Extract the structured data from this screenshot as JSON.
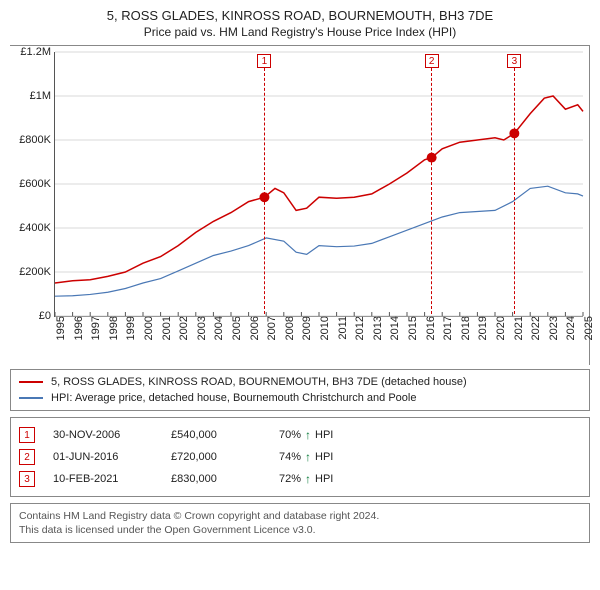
{
  "title": {
    "line1": "5, ROSS GLADES, KINROSS ROAD, BOURNEMOUTH, BH3 7DE",
    "line2": "Price paid vs. HM Land Registry's House Price Index (HPI)"
  },
  "chart": {
    "type": "line",
    "background_color": "#ffffff",
    "grid_color": "#d9d9d9",
    "axis_color": "#555555",
    "x": {
      "min": 1995,
      "max": 2025,
      "ticks": [
        1995,
        1996,
        1997,
        1998,
        1999,
        2000,
        2001,
        2002,
        2003,
        2004,
        2005,
        2006,
        2007,
        2008,
        2009,
        2010,
        2011,
        2012,
        2013,
        2014,
        2015,
        2016,
        2017,
        2018,
        2019,
        2020,
        2021,
        2022,
        2023,
        2024,
        2025
      ]
    },
    "y": {
      "min": 0,
      "max": 1200000,
      "ticks": [
        0,
        200000,
        400000,
        600000,
        800000,
        1000000,
        1200000
      ],
      "tick_labels": [
        "£0",
        "£200K",
        "£400K",
        "£600K",
        "£800K",
        "£1M",
        "£1.2M"
      ]
    },
    "series": [
      {
        "name": "price_paid",
        "label": "5, ROSS GLADES, KINROSS ROAD, BOURNEMOUTH, BH3 7DE (detached house)",
        "color": "#cc0000",
        "width": 1.5,
        "points": [
          [
            1995,
            150000
          ],
          [
            1996,
            160000
          ],
          [
            1997,
            165000
          ],
          [
            1998,
            180000
          ],
          [
            1999,
            200000
          ],
          [
            2000,
            240000
          ],
          [
            2001,
            270000
          ],
          [
            2002,
            320000
          ],
          [
            2003,
            380000
          ],
          [
            2004,
            430000
          ],
          [
            2005,
            470000
          ],
          [
            2006,
            520000
          ],
          [
            2006.9,
            540000
          ],
          [
            2007.5,
            580000
          ],
          [
            2008,
            560000
          ],
          [
            2008.7,
            480000
          ],
          [
            2009.3,
            490000
          ],
          [
            2010,
            540000
          ],
          [
            2011,
            535000
          ],
          [
            2012,
            540000
          ],
          [
            2013,
            555000
          ],
          [
            2014,
            600000
          ],
          [
            2015,
            650000
          ],
          [
            2016,
            710000
          ],
          [
            2016.4,
            720000
          ],
          [
            2017,
            760000
          ],
          [
            2018,
            790000
          ],
          [
            2019,
            800000
          ],
          [
            2020,
            810000
          ],
          [
            2020.5,
            800000
          ],
          [
            2021,
            825000
          ],
          [
            2021.1,
            830000
          ],
          [
            2022,
            920000
          ],
          [
            2022.8,
            990000
          ],
          [
            2023.3,
            1000000
          ],
          [
            2024,
            940000
          ],
          [
            2024.7,
            960000
          ],
          [
            2025,
            930000
          ]
        ]
      },
      {
        "name": "hpi",
        "label": "HPI: Average price, detached house, Bournemouth Christchurch and Poole",
        "color": "#4a78b5",
        "width": 1.2,
        "points": [
          [
            1995,
            90000
          ],
          [
            1996,
            92000
          ],
          [
            1997,
            98000
          ],
          [
            1998,
            108000
          ],
          [
            1999,
            125000
          ],
          [
            2000,
            150000
          ],
          [
            2001,
            170000
          ],
          [
            2002,
            205000
          ],
          [
            2003,
            240000
          ],
          [
            2004,
            275000
          ],
          [
            2005,
            295000
          ],
          [
            2006,
            320000
          ],
          [
            2007,
            355000
          ],
          [
            2008,
            340000
          ],
          [
            2008.7,
            290000
          ],
          [
            2009.3,
            280000
          ],
          [
            2010,
            320000
          ],
          [
            2011,
            315000
          ],
          [
            2012,
            318000
          ],
          [
            2013,
            330000
          ],
          [
            2014,
            360000
          ],
          [
            2015,
            390000
          ],
          [
            2016,
            420000
          ],
          [
            2017,
            450000
          ],
          [
            2018,
            470000
          ],
          [
            2019,
            475000
          ],
          [
            2020,
            480000
          ],
          [
            2021,
            520000
          ],
          [
            2022,
            580000
          ],
          [
            2023,
            590000
          ],
          [
            2024,
            560000
          ],
          [
            2024.7,
            555000
          ],
          [
            2025,
            545000
          ]
        ]
      }
    ],
    "markers": [
      {
        "x": 2006.9,
        "y": 540000,
        "color": "#cc0000",
        "size": 5
      },
      {
        "x": 2016.4,
        "y": 720000,
        "color": "#cc0000",
        "size": 5
      },
      {
        "x": 2021.1,
        "y": 830000,
        "color": "#cc0000",
        "size": 5
      }
    ],
    "callouts": [
      {
        "n": "1",
        "x": 2006.9
      },
      {
        "n": "2",
        "x": 2016.4
      },
      {
        "n": "3",
        "x": 2021.1
      }
    ]
  },
  "legend": {
    "items": [
      {
        "color": "#cc0000",
        "label": "5, ROSS GLADES, KINROSS ROAD, BOURNEMOUTH, BH3 7DE (detached house)"
      },
      {
        "color": "#4a78b5",
        "label": "HPI: Average price, detached house, Bournemouth Christchurch and Poole"
      }
    ]
  },
  "events": [
    {
      "n": "1",
      "date": "30-NOV-2006",
      "price": "£540,000",
      "pct": "70%",
      "suffix": "HPI"
    },
    {
      "n": "2",
      "date": "01-JUN-2016",
      "price": "£720,000",
      "pct": "74%",
      "suffix": "HPI"
    },
    {
      "n": "3",
      "date": "10-FEB-2021",
      "price": "£830,000",
      "pct": "72%",
      "suffix": "HPI"
    }
  ],
  "footer": {
    "line1": "Contains HM Land Registry data © Crown copyright and database right 2024.",
    "line2": "This data is licensed under the Open Government Licence v3.0."
  }
}
